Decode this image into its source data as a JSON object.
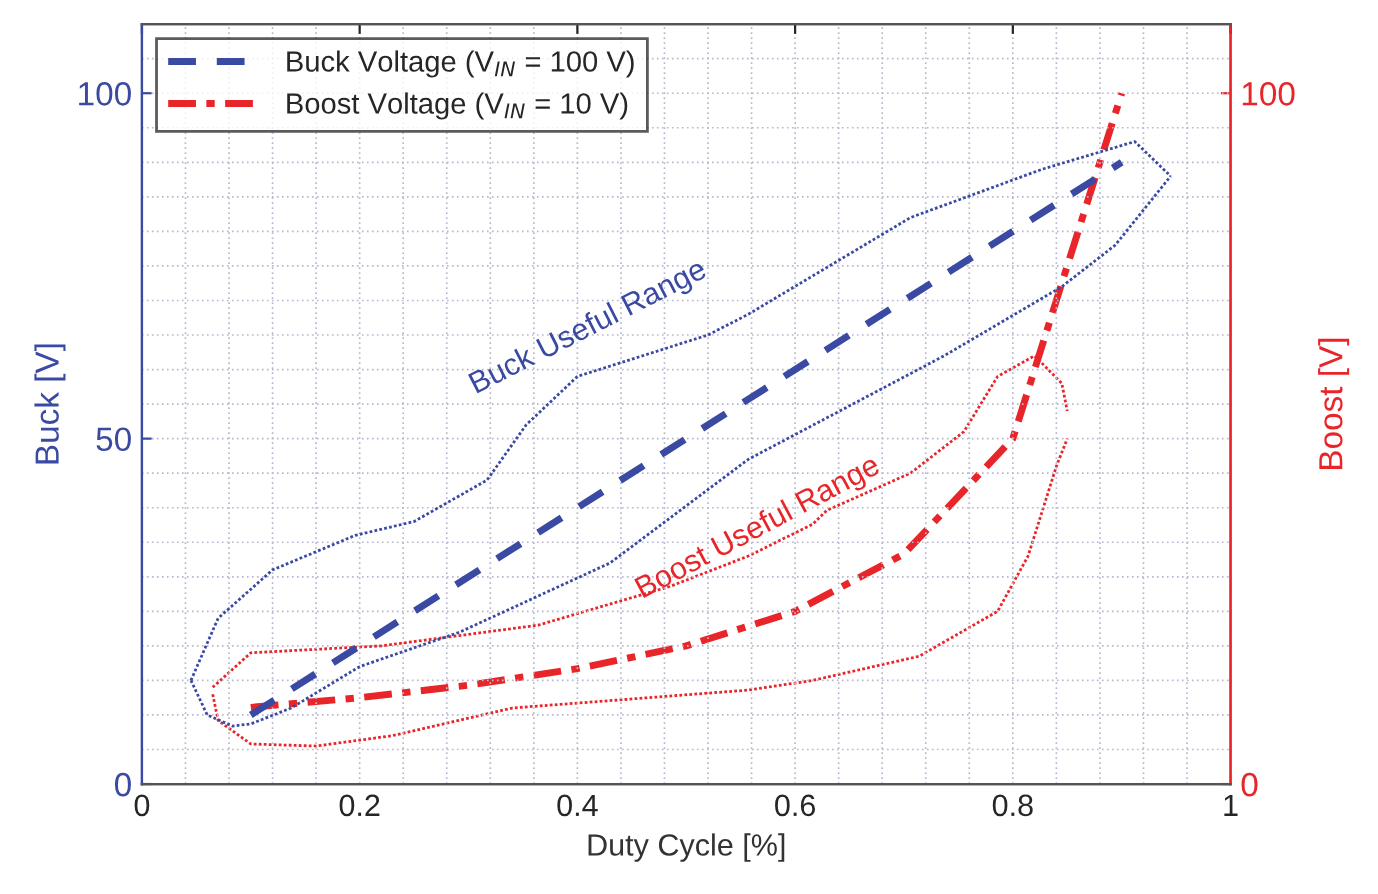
{
  "chart_data": {
    "type": "line",
    "xlabel": "Duty Cycle [%]",
    "ylabel": "Buck [V]",
    "y2label": "Boost [V]",
    "xlim": [
      0,
      1
    ],
    "xticks": [
      0,
      0.2,
      0.4,
      0.6,
      0.8,
      1
    ],
    "ylim": [
      0,
      110
    ],
    "yticks": [
      0,
      50,
      100
    ],
    "y2lim": [
      0,
      110
    ],
    "y2ticks": [
      0,
      100
    ],
    "grid": true,
    "legend": "top left",
    "series": [
      {
        "name": "Buck Voltage (V$_{IN}$ = 100 V)",
        "color": "#3a4aa3",
        "line_style": "dashed",
        "x": [
          0.1,
          0.9
        ],
        "values": [
          10,
          90
        ]
      },
      {
        "name": "Boost Voltage (V$_{IN}$ = 10 V)",
        "color": "#e8262a",
        "line_style": "dashdot",
        "axis": "y2",
        "x": [
          0.1,
          0.2,
          0.3,
          0.4,
          0.5,
          0.6,
          0.7,
          0.8,
          0.9
        ],
        "values": [
          11.1,
          12.5,
          14.3,
          16.7,
          20,
          25,
          33.3,
          50,
          100
        ]
      },
      {
        "color": "#3a4aa3",
        "line_style": "dotted",
        "x": [
          0.045,
          0.07,
          0.12,
          0.196,
          0.25,
          0.317,
          0.353,
          0.4,
          0.52,
          0.557,
          0.706,
          0.827,
          0.912,
          0.945
        ],
        "values": [
          15,
          24,
          31,
          36,
          38,
          44,
          52,
          59,
          65,
          68,
          82,
          89,
          93,
          88
        ]
      },
      {
        "color": "#3a4aa3",
        "line_style": "dotted",
        "x": [
          0.045,
          0.06,
          0.083,
          0.1,
          0.137,
          0.2,
          0.292,
          0.43,
          0.557,
          0.737,
          0.845,
          0.894,
          0.945
        ],
        "values": [
          15,
          10,
          8.4,
          8.7,
          11,
          17,
          22,
          32,
          47,
          62,
          72,
          78,
          88
        ]
      },
      {
        "color": "#e8262a",
        "line_style": "dotted",
        "axis": "y2",
        "x": [
          0.065,
          0.1,
          0.22,
          0.364,
          0.485,
          0.557,
          0.616,
          0.629,
          0.706,
          0.755,
          0.786,
          0.82,
          0.845,
          0.85
        ],
        "values": [
          14,
          19,
          20,
          23,
          28.6,
          33,
          37.6,
          39.6,
          45,
          51,
          59,
          62,
          58,
          54
        ]
      },
      {
        "color": "#e8262a",
        "line_style": "dotted",
        "axis": "y2",
        "x": [
          0.065,
          0.07,
          0.1,
          0.16,
          0.23,
          0.34,
          0.557,
          0.616,
          0.714,
          0.786,
          0.814,
          0.84,
          0.85
        ],
        "values": [
          13,
          9.2,
          5.8,
          5.5,
          7,
          11,
          13.6,
          15,
          18.5,
          25,
          33,
          46,
          50
        ]
      }
    ],
    "annotations": [
      "Buck Useful Range",
      "Boost Useful Range"
    ]
  }
}
